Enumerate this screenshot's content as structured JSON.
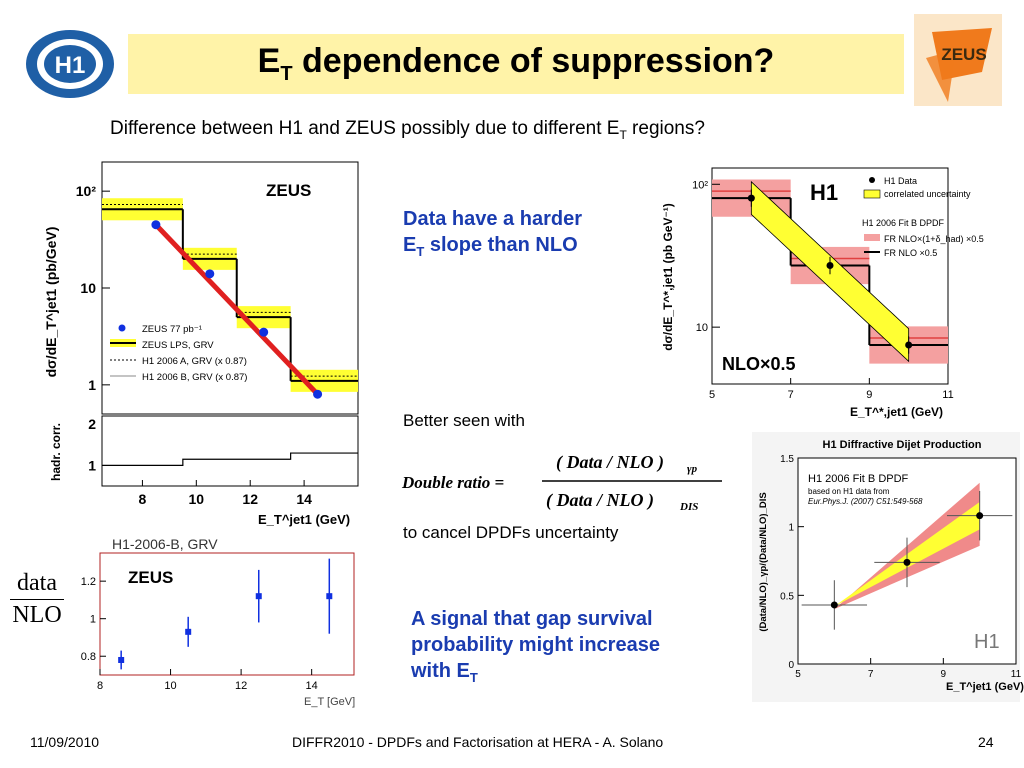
{
  "title": {
    "main": "E",
    "sub": "T",
    "rest": " dependence of suppression?"
  },
  "subtitle": {
    "before": "Difference between H1 and ZEUS possibly due to different E",
    "sub": "T",
    "after": " regions?"
  },
  "logos": {
    "h1": "H1",
    "zeus": "ZEUS"
  },
  "notes": {
    "harder_slope_line1": "Data have a harder",
    "harder_slope_line2a": "E",
    "harder_slope_line2sub": "T",
    "harder_slope_line2b": " slope than NLO",
    "better_seen": "Better seen with",
    "cancel": "to cancel DPDFs uncertainty",
    "signal_line1": "A signal that gap survival",
    "signal_line2": "probability might increase",
    "signal_line3a": "with E",
    "signal_line3sub": "T"
  },
  "formula": {
    "lhs": "Double ratio =",
    "numerator": "( Data / NLO )",
    "numerator_sub": "γp",
    "denominator": "( Data / NLO )",
    "denominator_sub": "DIS"
  },
  "ratio_label": {
    "top": "data",
    "bottom": "NLO"
  },
  "footer": {
    "date": "11/09/2010",
    "center": "DIFFR2010  -  DPDFs and Factorisation at HERA  -  A. Solano",
    "page": "24"
  },
  "colors": {
    "accent_blue": "#1a3cb0",
    "title_bg": "#fff3a8",
    "band_yellow": "#ffff33",
    "band_red": "#f08080"
  },
  "chart_data": [
    {
      "id": "zeus-main",
      "type": "scatter",
      "title": "ZEUS",
      "ylabel": "dσ/dE_T^jet1  (pb/GeV)",
      "yscale": "log",
      "yticks": [
        "10²",
        "10",
        "1"
      ],
      "ylim": [
        0.5,
        200
      ],
      "xlim": [
        6.5,
        16
      ],
      "points": [
        [
          8.5,
          45
        ],
        [
          10.5,
          14
        ],
        [
          12.5,
          3.5
        ],
        [
          14.5,
          0.8
        ]
      ],
      "nlo_steps": [
        [
          6.5,
          9.5,
          65
        ],
        [
          9.5,
          11.5,
          20
        ],
        [
          11.5,
          13.5,
          5
        ],
        [
          13.5,
          16,
          1.1
        ]
      ],
      "legend": [
        "ZEUS 77 pb⁻¹",
        "ZEUS LPS, GRV",
        "H1 2006 A, GRV (x 0.87)",
        "H1 2006 B, GRV (x 0.87)"
      ]
    },
    {
      "id": "zeus-hadr",
      "type": "line",
      "ylabel": "hadr. corr.",
      "yticks": [
        "2",
        "1"
      ],
      "xticks": [
        "8",
        "10",
        "12",
        "14"
      ],
      "xlabel": "E_T^jet1   (GeV)",
      "steps": [
        [
          6.5,
          9.5,
          1.0
        ],
        [
          9.5,
          13.5,
          1.15
        ],
        [
          13.5,
          16,
          1.3
        ]
      ]
    },
    {
      "id": "zeus-ratio",
      "type": "scatter",
      "title": "H1-2006-B, GRV",
      "label": "ZEUS",
      "xticks": [
        "8",
        "10",
        "12",
        "14"
      ],
      "yticks": [
        "1.2",
        "1",
        "0.8"
      ],
      "xlabel": "E_T [GeV]",
      "xlim": [
        8,
        15.2
      ],
      "ylim": [
        0.7,
        1.35
      ],
      "points": [
        [
          8.6,
          0.78,
          0.05
        ],
        [
          10.5,
          0.93,
          0.08
        ],
        [
          12.5,
          1.12,
          0.14
        ],
        [
          14.5,
          1.12,
          0.2
        ]
      ]
    },
    {
      "id": "h1-main",
      "type": "scatter",
      "title": "H1",
      "ylabel": "dσ/dE_T^*,jet1 (pb GeV⁻¹)",
      "yscale": "log",
      "yticks": [
        "10²",
        "10"
      ],
      "xticks": [
        "5",
        "7",
        "9",
        "11"
      ],
      "xlabel": "E_T^*,jet1 (GeV)",
      "xlim": [
        5,
        11
      ],
      "points": [
        [
          6,
          80
        ],
        [
          8,
          27
        ],
        [
          10,
          7.5
        ]
      ],
      "nlo_label": "NLO×0.5",
      "legend": [
        "H1 Data",
        "correlated uncertainty",
        "H1 2006 Fit B DPDF",
        "FR NLO×(1+δ_had) ×0.5",
        "FR NLO ×0.5"
      ]
    },
    {
      "id": "h1-double-ratio",
      "type": "scatter",
      "title": "H1 Diffractive Dijet Production",
      "subtitle": "H1 2006 Fit B DPDF",
      "note1": "based on H1 data from",
      "note2": "Eur.Phys.J. (2007) C51:549-568",
      "label": "H1",
      "ylabel": "(Data/NLO)_γp/(Data/NLO)_DIS",
      "xlabel": "E_T^jet1 (GeV)",
      "xticks": [
        "5",
        "7",
        "9",
        "11"
      ],
      "yticks": [
        "1.5",
        "1",
        "0.5",
        "0"
      ],
      "xlim": [
        5,
        11
      ],
      "ylim": [
        0,
        1.5
      ],
      "points": [
        [
          6,
          0.43
        ],
        [
          8,
          0.74
        ],
        [
          10,
          1.08
        ]
      ]
    }
  ]
}
